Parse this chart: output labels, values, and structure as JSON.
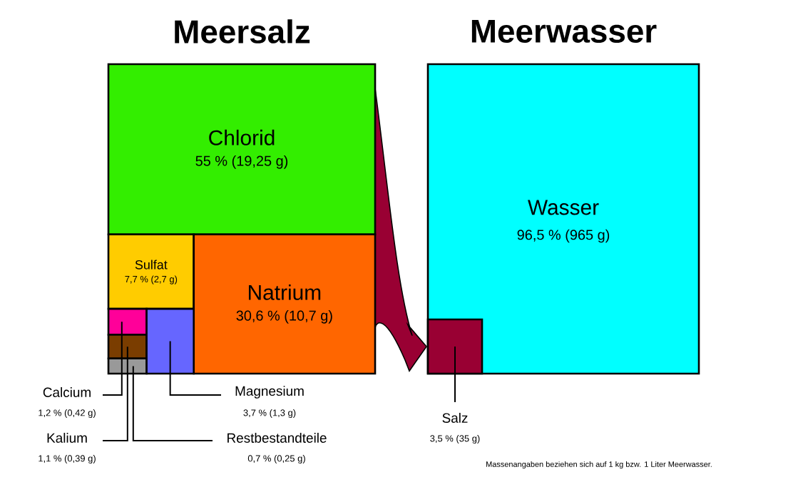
{
  "chart_data": [
    {
      "type": "other",
      "title": "Meersalz",
      "categories": [
        "Chlorid",
        "Sulfat",
        "Natrium",
        "Calcium",
        "Kalium",
        "Restbestandteile",
        "Magnesium"
      ],
      "values": [
        55,
        7.7,
        30.6,
        1.2,
        1.1,
        0.7,
        3.7
      ],
      "value_labels": [
        "55 % (19,25 g)",
        "7,7 % (2,7 g)",
        "30,6 % (10,7 g)",
        "1,2 % (0,42 g)",
        "1,1 % (0,39 g)",
        "0,7 % (0,25 g)",
        "3,7 % (1,3 g)"
      ],
      "colors": [
        "#33ee00",
        "#ffcc00",
        "#ff6600",
        "#ff0099",
        "#7a3d00",
        "#999999",
        "#6666ff"
      ]
    },
    {
      "type": "other",
      "title": "Meerwasser",
      "categories": [
        "Wasser",
        "Salz"
      ],
      "values": [
        96.5,
        3.5
      ],
      "value_labels": [
        "96,5 % (965 g)",
        "3,5 % (35 g)"
      ],
      "colors": [
        "#00ffff",
        "#990033"
      ],
      "annotations": [
        "Massenangaben beziehen sich auf 1 kg bzw. 1 Liter Meerwasser."
      ]
    }
  ]
}
